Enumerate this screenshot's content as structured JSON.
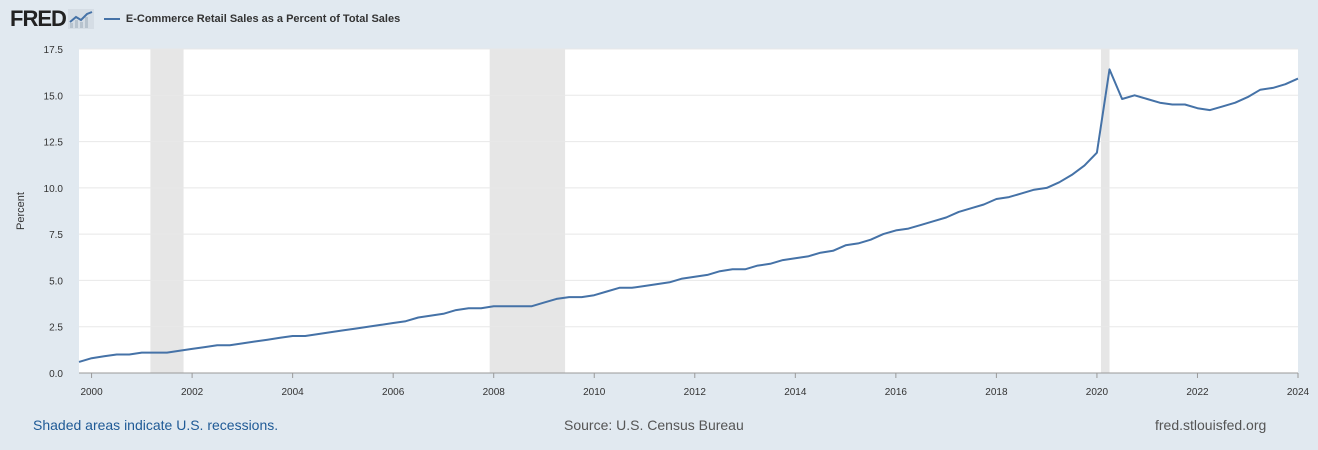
{
  "header": {
    "brand": "FRED",
    "brand_icon": "fred-chart-icon",
    "legend_label": "E-Commerce Retail Sales as a Percent of Total Sales",
    "series_color": "#4572a7"
  },
  "footer": {
    "recession_note": "Shaded areas indicate U.S. recessions.",
    "source": "Source: U.S. Census Bureau",
    "site": "fred.stlouisfed.org"
  },
  "chart_data": {
    "type": "line",
    "title": "",
    "xlabel": "",
    "ylabel": "Percent",
    "xlim": [
      1999.75,
      2024.0
    ],
    "ylim": [
      0,
      17.5
    ],
    "yticks": [
      0,
      2.5,
      5,
      7.5,
      10,
      12.5,
      15,
      17.5
    ],
    "ytick_labels": [
      "0.0",
      "2.5",
      "5.0",
      "7.5",
      "10.0",
      "12.5",
      "15.0",
      "17.5"
    ],
    "xticks": [
      2000,
      2002,
      2004,
      2006,
      2008,
      2010,
      2012,
      2014,
      2016,
      2018,
      2020,
      2022,
      2024
    ],
    "xtick_labels": [
      "2000",
      "2002",
      "2004",
      "2006",
      "2008",
      "2010",
      "2012",
      "2014",
      "2016",
      "2018",
      "2020",
      "2022",
      "2024"
    ],
    "grid": true,
    "recessions": [
      [
        2001.17,
        2001.83
      ],
      [
        2007.92,
        2009.42
      ],
      [
        2020.08,
        2020.25
      ]
    ],
    "series": [
      {
        "name": "E-Commerce Retail Sales as a Percent of Total Sales",
        "color": "#4572a7",
        "x": [
          1999.75,
          2000.0,
          2000.25,
          2000.5,
          2000.75,
          2001.0,
          2001.25,
          2001.5,
          2001.75,
          2002.0,
          2002.25,
          2002.5,
          2002.75,
          2003.0,
          2003.25,
          2003.5,
          2003.75,
          2004.0,
          2004.25,
          2004.5,
          2004.75,
          2005.0,
          2005.25,
          2005.5,
          2005.75,
          2006.0,
          2006.25,
          2006.5,
          2006.75,
          2007.0,
          2007.25,
          2007.5,
          2007.75,
          2008.0,
          2008.25,
          2008.5,
          2008.75,
          2009.0,
          2009.25,
          2009.5,
          2009.75,
          2010.0,
          2010.25,
          2010.5,
          2010.75,
          2011.0,
          2011.25,
          2011.5,
          2011.75,
          2012.0,
          2012.25,
          2012.5,
          2012.75,
          2013.0,
          2013.25,
          2013.5,
          2013.75,
          2014.0,
          2014.25,
          2014.5,
          2014.75,
          2015.0,
          2015.25,
          2015.5,
          2015.75,
          2016.0,
          2016.25,
          2016.5,
          2016.75,
          2017.0,
          2017.25,
          2017.5,
          2017.75,
          2018.0,
          2018.25,
          2018.5,
          2018.75,
          2019.0,
          2019.25,
          2019.5,
          2019.75,
          2020.0,
          2020.25,
          2020.5,
          2020.75,
          2021.0,
          2021.25,
          2021.5,
          2021.75,
          2022.0,
          2022.25,
          2022.5,
          2022.75,
          2023.0,
          2023.25,
          2023.5,
          2023.75,
          2024.0
        ],
        "y": [
          0.6,
          0.8,
          0.9,
          1.0,
          1.0,
          1.1,
          1.1,
          1.1,
          1.2,
          1.3,
          1.4,
          1.5,
          1.5,
          1.6,
          1.7,
          1.8,
          1.9,
          2.0,
          2.0,
          2.1,
          2.2,
          2.3,
          2.4,
          2.5,
          2.6,
          2.7,
          2.8,
          3.0,
          3.1,
          3.2,
          3.4,
          3.5,
          3.5,
          3.6,
          3.6,
          3.6,
          3.6,
          3.8,
          4.0,
          4.1,
          4.1,
          4.2,
          4.4,
          4.6,
          4.6,
          4.7,
          4.8,
          4.9,
          5.1,
          5.2,
          5.3,
          5.5,
          5.6,
          5.6,
          5.8,
          5.9,
          6.1,
          6.2,
          6.3,
          6.5,
          6.6,
          6.9,
          7.0,
          7.2,
          7.5,
          7.7,
          7.8,
          8.0,
          8.2,
          8.4,
          8.7,
          8.9,
          9.1,
          9.4,
          9.5,
          9.7,
          9.9,
          10.0,
          10.3,
          10.7,
          11.2,
          11.9,
          16.4,
          14.8,
          15.0,
          14.8,
          14.6,
          14.5,
          14.5,
          14.3,
          14.2,
          14.4,
          14.6,
          14.9,
          15.3,
          15.4,
          15.6,
          15.9
        ]
      }
    ]
  }
}
